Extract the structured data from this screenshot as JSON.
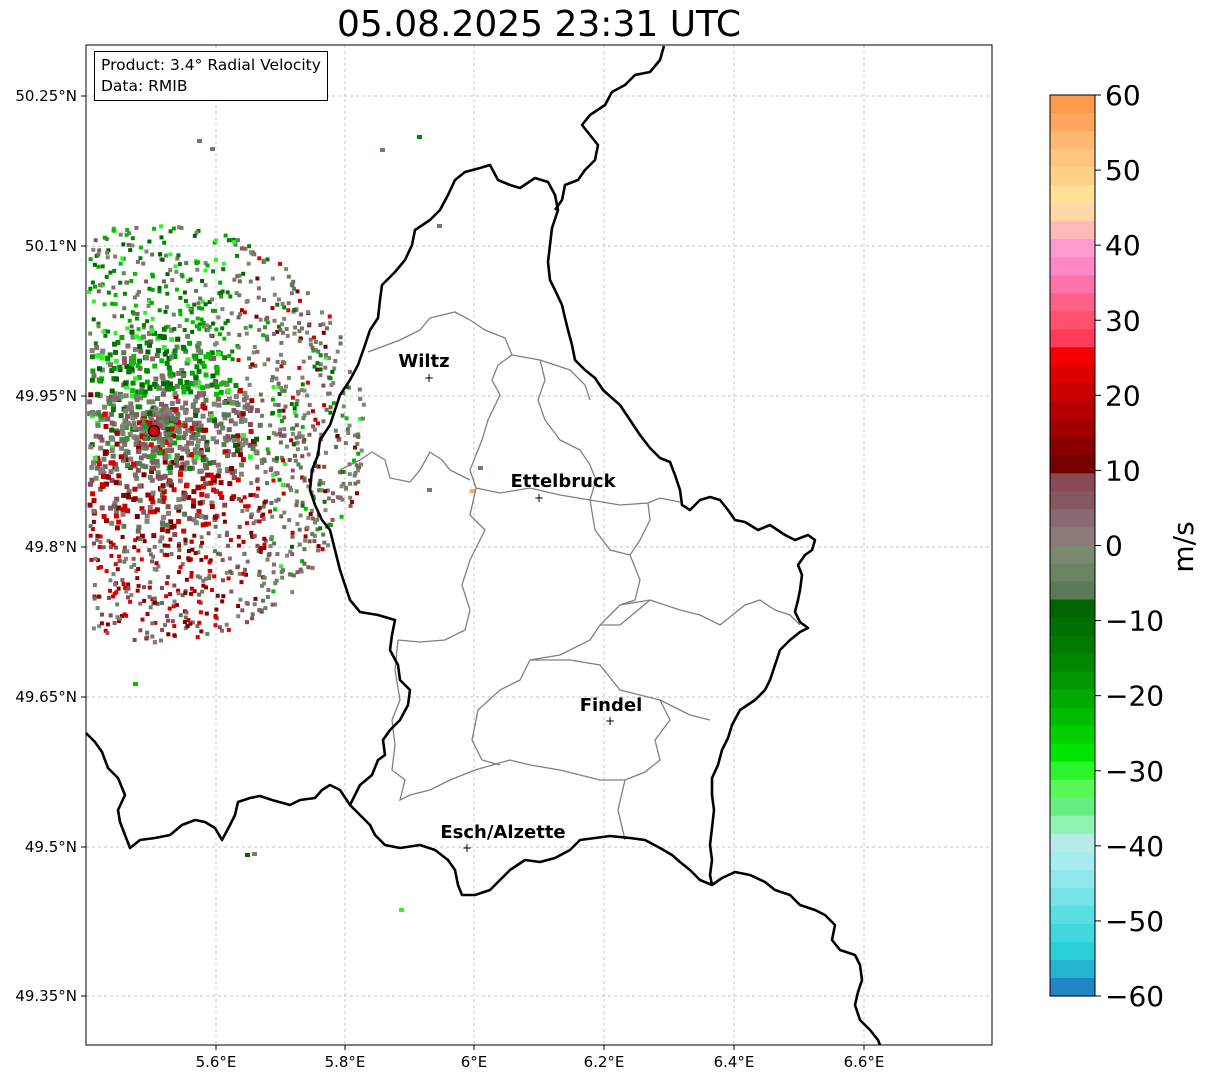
{
  "title": "05.08.2025 23:31 UTC",
  "info": {
    "product": "Product: 3.4° Radial Velocity",
    "data": "Data: RMIB"
  },
  "axes": {
    "lat_ticks": [
      "50.25°N",
      "50.1°N",
      "49.95°N",
      "49.8°N",
      "49.65°N",
      "49.5°N",
      "49.35°N"
    ],
    "lon_ticks": [
      "5.6°E",
      "5.8°E",
      "6°E",
      "6.2°E",
      "6.4°E",
      "6.6°E"
    ]
  },
  "cities": [
    {
      "name": "Wiltz",
      "lon": 5.93,
      "lat": 49.967
    },
    {
      "name": "Ettelbruck",
      "lon": 6.1,
      "lat": 49.847
    },
    {
      "name": "Findel",
      "lon": 6.21,
      "lat": 49.624
    },
    {
      "name": "Esch/Alzette",
      "lon": 5.99,
      "lat": 49.497
    }
  ],
  "radar_site": {
    "lon": 5.505,
    "lat": 49.914
  },
  "colorbar": {
    "label": "m/s",
    "min": -60,
    "max": 60,
    "ticks": [
      "60",
      "50",
      "40",
      "30",
      "20",
      "10",
      "0",
      "−10",
      "−20",
      "−30",
      "−40",
      "−50",
      "−60"
    ]
  },
  "colors": {
    "border": "#000000",
    "canton": "#808080",
    "radar_marker": "#e00000"
  }
}
